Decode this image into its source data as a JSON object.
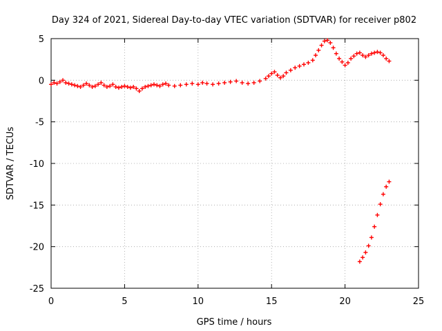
{
  "chart_data": {
    "type": "scatter",
    "title": "Day 324 of 2021, Sidereal Day-to-day VTEC variation (SDTVAR) for receiver p802",
    "xlabel": "GPS time / hours",
    "ylabel": "SDTVAR / TECUs",
    "xlim": [
      0,
      25
    ],
    "ylim": [
      -25,
      5
    ],
    "xticks": [
      0,
      5,
      10,
      15,
      20,
      25
    ],
    "yticks": [
      5,
      0,
      -5,
      -10,
      -15,
      -20,
      -25
    ],
    "grid": true,
    "marker": "+",
    "series": [
      {
        "name": "SDTVAR",
        "color": "#ff0000",
        "points": [
          [
            0.0,
            -0.5
          ],
          [
            0.2,
            -0.3
          ],
          [
            0.4,
            -0.4
          ],
          [
            0.6,
            -0.2
          ],
          [
            0.8,
            0.0
          ],
          [
            1.0,
            -0.3
          ],
          [
            1.2,
            -0.4
          ],
          [
            1.4,
            -0.5
          ],
          [
            1.6,
            -0.6
          ],
          [
            1.8,
            -0.7
          ],
          [
            2.0,
            -0.8
          ],
          [
            2.2,
            -0.6
          ],
          [
            2.4,
            -0.4
          ],
          [
            2.6,
            -0.6
          ],
          [
            2.8,
            -0.8
          ],
          [
            3.0,
            -0.7
          ],
          [
            3.2,
            -0.5
          ],
          [
            3.4,
            -0.3
          ],
          [
            3.6,
            -0.6
          ],
          [
            3.8,
            -0.8
          ],
          [
            4.0,
            -0.7
          ],
          [
            4.2,
            -0.5
          ],
          [
            4.4,
            -0.8
          ],
          [
            4.6,
            -0.9
          ],
          [
            4.8,
            -0.8
          ],
          [
            5.0,
            -0.7
          ],
          [
            5.2,
            -0.8
          ],
          [
            5.4,
            -0.9
          ],
          [
            5.6,
            -0.8
          ],
          [
            5.8,
            -1.0
          ],
          [
            6.0,
            -1.3
          ],
          [
            6.2,
            -1.0
          ],
          [
            6.4,
            -0.8
          ],
          [
            6.6,
            -0.7
          ],
          [
            6.8,
            -0.6
          ],
          [
            7.0,
            -0.5
          ],
          [
            7.2,
            -0.6
          ],
          [
            7.4,
            -0.7
          ],
          [
            7.6,
            -0.5
          ],
          [
            7.8,
            -0.4
          ],
          [
            8.0,
            -0.6
          ],
          [
            8.4,
            -0.7
          ],
          [
            8.8,
            -0.6
          ],
          [
            9.2,
            -0.5
          ],
          [
            9.6,
            -0.4
          ],
          [
            10.0,
            -0.5
          ],
          [
            10.3,
            -0.3
          ],
          [
            10.6,
            -0.4
          ],
          [
            11.0,
            -0.5
          ],
          [
            11.4,
            -0.4
          ],
          [
            11.8,
            -0.3
          ],
          [
            12.2,
            -0.2
          ],
          [
            12.6,
            -0.1
          ],
          [
            13.0,
            -0.3
          ],
          [
            13.4,
            -0.4
          ],
          [
            13.8,
            -0.3
          ],
          [
            14.2,
            -0.1
          ],
          [
            14.6,
            0.2
          ],
          [
            14.8,
            0.5
          ],
          [
            15.0,
            0.8
          ],
          [
            15.2,
            1.0
          ],
          [
            15.4,
            0.6
          ],
          [
            15.6,
            0.3
          ],
          [
            15.8,
            0.5
          ],
          [
            16.0,
            0.9
          ],
          [
            16.3,
            1.2
          ],
          [
            16.6,
            1.5
          ],
          [
            16.9,
            1.7
          ],
          [
            17.2,
            1.9
          ],
          [
            17.5,
            2.1
          ],
          [
            17.8,
            2.4
          ],
          [
            18.0,
            3.0
          ],
          [
            18.2,
            3.6
          ],
          [
            18.4,
            4.2
          ],
          [
            18.6,
            4.7
          ],
          [
            18.8,
            4.8
          ],
          [
            19.0,
            4.5
          ],
          [
            19.2,
            3.9
          ],
          [
            19.4,
            3.2
          ],
          [
            19.6,
            2.6
          ],
          [
            19.8,
            2.2
          ],
          [
            20.0,
            1.8
          ],
          [
            20.2,
            2.1
          ],
          [
            20.4,
            2.6
          ],
          [
            20.6,
            2.9
          ],
          [
            20.8,
            3.2
          ],
          [
            21.0,
            3.3
          ],
          [
            21.2,
            3.0
          ],
          [
            21.4,
            2.8
          ],
          [
            21.6,
            3.0
          ],
          [
            21.8,
            3.2
          ],
          [
            22.0,
            3.3
          ],
          [
            22.2,
            3.4
          ],
          [
            22.4,
            3.3
          ],
          [
            22.6,
            3.0
          ],
          [
            22.8,
            2.6
          ],
          [
            23.0,
            2.3
          ],
          [
            21.0,
            -21.8
          ],
          [
            21.2,
            -21.3
          ],
          [
            21.4,
            -20.7
          ],
          [
            21.6,
            -19.9
          ],
          [
            21.8,
            -18.9
          ],
          [
            22.0,
            -17.6
          ],
          [
            22.2,
            -16.2
          ],
          [
            22.4,
            -14.9
          ],
          [
            22.6,
            -13.7
          ],
          [
            22.8,
            -12.8
          ],
          [
            23.0,
            -12.2
          ]
        ]
      }
    ]
  }
}
